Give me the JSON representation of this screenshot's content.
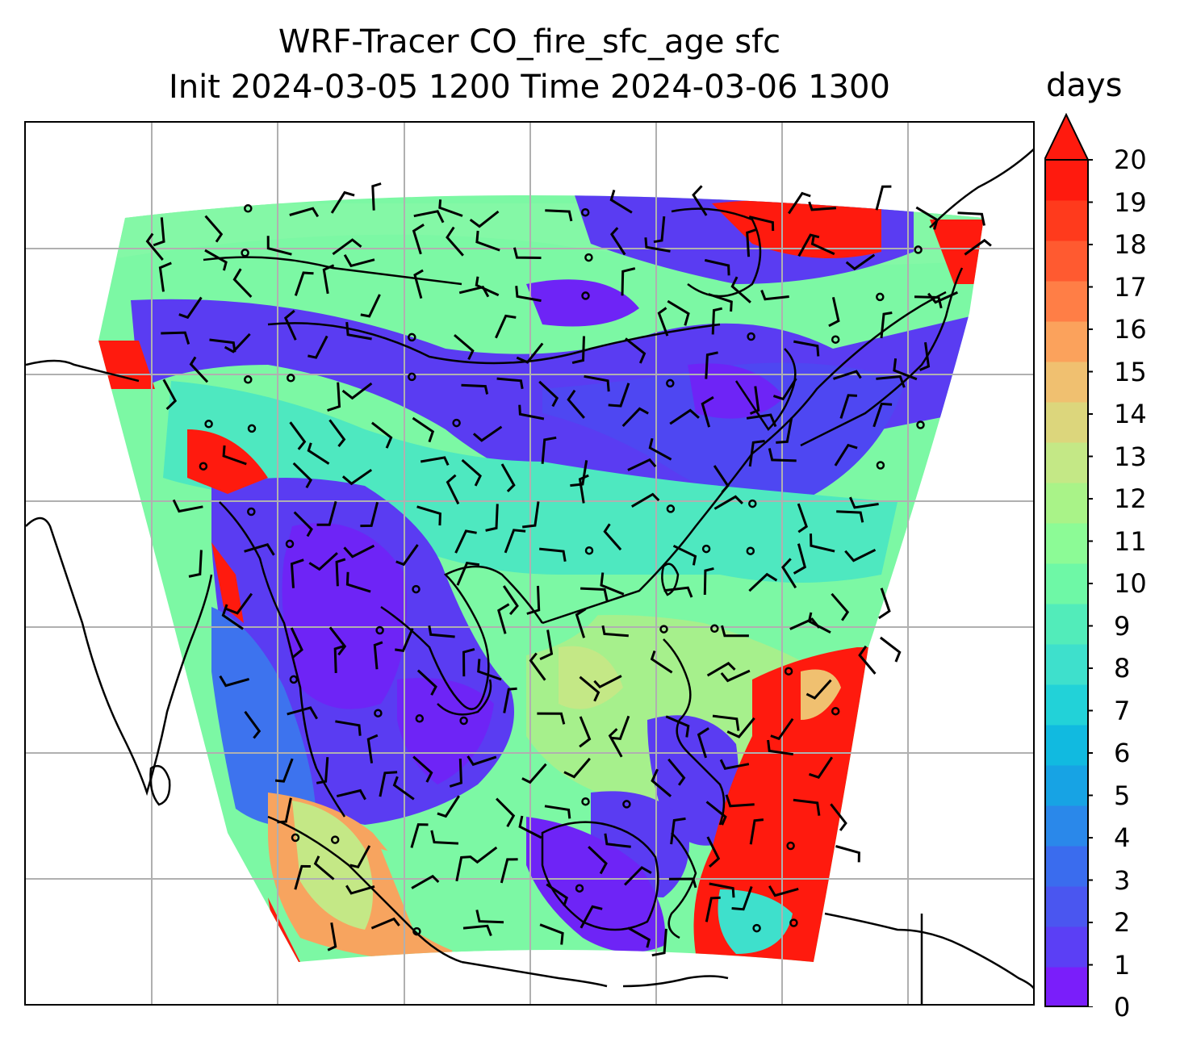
{
  "title_line1": "WRF-Tracer CO_fire_sfc_age sfc",
  "title_line2": "Init 2024-03-05 1200 Time 2024-03-06 1300",
  "colorbar": {
    "unit": "days",
    "ticks": [
      "0",
      "1",
      "2",
      "3",
      "4",
      "5",
      "6",
      "7",
      "8",
      "9",
      "10",
      "11",
      "12",
      "13",
      "14",
      "15",
      "16",
      "17",
      "18",
      "19",
      "20"
    ],
    "extend": "max",
    "colors": [
      "#7a1efa",
      "#5b3ff5",
      "#4a56f0",
      "#3a6cee",
      "#2a88ea",
      "#17a3e4",
      "#11bae0",
      "#22d2d8",
      "#3ee0cc",
      "#52ecba",
      "#6ef8a6",
      "#8cfb96",
      "#a9f388",
      "#c4e886",
      "#dcd67c",
      "#f0c070",
      "#fba25c",
      "#ff7e46",
      "#ff5a30",
      "#ff3a1c",
      "#ff1a0e"
    ]
  },
  "map": {
    "gridlines": "on",
    "field_colors": {
      "low": "#5a3cf2",
      "very_low": "#6e24f6",
      "mid_blue": "#3d73ee",
      "cyan": "#34d8d2",
      "green": "#7cf8a4",
      "light_green": "#a6f08c",
      "orange": "#f7a45f",
      "red": "#ff1a0e"
    },
    "wind_barbs": "black half/full barbs, calm circles"
  }
}
